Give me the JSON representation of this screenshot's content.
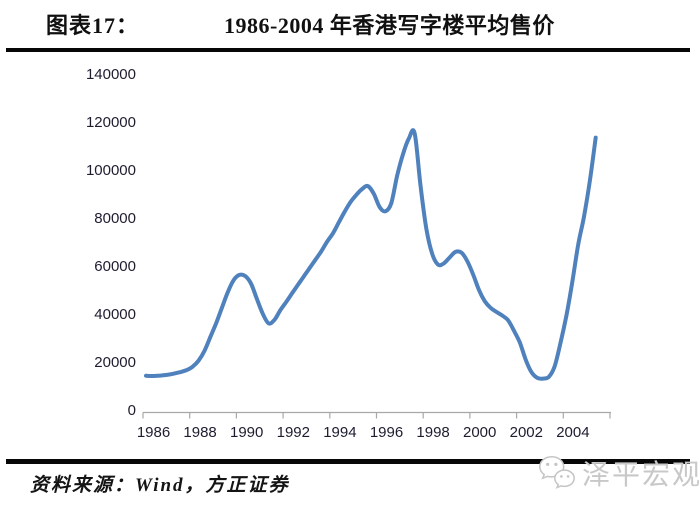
{
  "header": {
    "label": "图表17：",
    "title": "1986-2004 年香港写字楼平均售价"
  },
  "footer": {
    "source": "资料来源：Wind，方正证券",
    "watermark": "泽平宏观"
  },
  "colors": {
    "line": "#4F81BD",
    "axis": "#a8a8a8",
    "tick_label": "#1d1d30",
    "rule": "#070707",
    "watermark": "#c8c8c8"
  },
  "chart_data": {
    "type": "line",
    "title": "1986-2004 年香港写字楼平均售价",
    "xlabel": "",
    "ylabel": "",
    "ylim": [
      0,
      140000
    ],
    "grid": false,
    "legend": false,
    "ytick_values": [
      0,
      20000,
      40000,
      60000,
      80000,
      100000,
      120000,
      140000
    ],
    "xtick_labels": [
      "1986",
      "1988",
      "1990",
      "1992",
      "1994",
      "1996",
      "1998",
      "2000",
      "2002",
      "2004"
    ],
    "x_frequency": "quarterly",
    "x_start": "1986Q1",
    "x_end": "2005Q2",
    "series": [
      {
        "name": "香港写字楼平均售价",
        "color": "#4F81BD",
        "values": [
          14700,
          14600,
          14700,
          14900,
          15200,
          15700,
          16300,
          17100,
          18500,
          21000,
          25000,
          30700,
          36500,
          43000,
          49500,
          54500,
          56700,
          56200,
          53000,
          46600,
          40500,
          36500,
          38000,
          42000,
          45400,
          49000,
          52500,
          56000,
          59500,
          63000,
          66500,
          70500,
          74000,
          78500,
          83000,
          87000,
          90000,
          92500,
          93700,
          90500,
          85000,
          83200,
          86600,
          98000,
          107000,
          113500,
          115800,
          94000,
          76000,
          65500,
          61000,
          61500,
          64000,
          66300,
          66000,
          62500,
          57000,
          50500,
          45800,
          43000,
          41300,
          39800,
          37800,
          33500,
          28600,
          21500,
          16200,
          13800,
          13500,
          14300,
          18800,
          28600,
          39900,
          53800,
          69300,
          81000,
          95800,
          113900
        ]
      }
    ]
  }
}
